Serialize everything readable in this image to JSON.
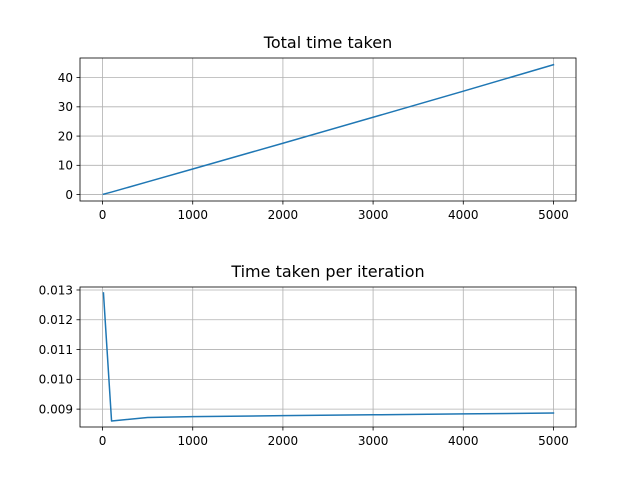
{
  "chart_data": [
    {
      "type": "line",
      "title": "Total time taken",
      "xlabel": "",
      "ylabel": "",
      "xlim": [
        -250,
        5250
      ],
      "ylim": [
        -2.2,
        46.7
      ],
      "xticks": [
        0,
        1000,
        2000,
        3000,
        4000,
        5000
      ],
      "yticks": [
        0,
        10,
        20,
        30,
        40
      ],
      "xtick_labels": [
        "0",
        "1000",
        "2000",
        "3000",
        "4000",
        "5000"
      ],
      "ytick_labels": [
        "0",
        "10",
        "20",
        "30",
        "40"
      ],
      "grid": true,
      "series": [
        {
          "color": "#1f77b4",
          "x": [
            10,
            100,
            500,
            1000,
            2000,
            3000,
            4000,
            5000
          ],
          "y": [
            0.13,
            0.86,
            4.36,
            8.75,
            17.56,
            26.43,
            35.36,
            44.4
          ]
        }
      ]
    },
    {
      "type": "line",
      "title": "Time taken per iteration",
      "xlabel": "",
      "ylabel": "",
      "xlim": [
        -250,
        5250
      ],
      "ylim": [
        0.0084,
        0.0131
      ],
      "xticks": [
        0,
        1000,
        2000,
        3000,
        4000,
        5000
      ],
      "yticks": [
        0.009,
        0.01,
        0.011,
        0.012,
        0.013
      ],
      "xtick_labels": [
        "0",
        "1000",
        "2000",
        "3000",
        "4000",
        "5000"
      ],
      "ytick_labels": [
        "0.009",
        "0.010",
        "0.011",
        "0.012",
        "0.013"
      ],
      "grid": true,
      "series": [
        {
          "color": "#1f77b4",
          "x": [
            10,
            100,
            500,
            1000,
            2000,
            3000,
            4000,
            5000
          ],
          "y": [
            0.0129,
            0.0086,
            0.00872,
            0.00875,
            0.00878,
            0.00881,
            0.00884,
            0.00887
          ]
        }
      ]
    }
  ]
}
